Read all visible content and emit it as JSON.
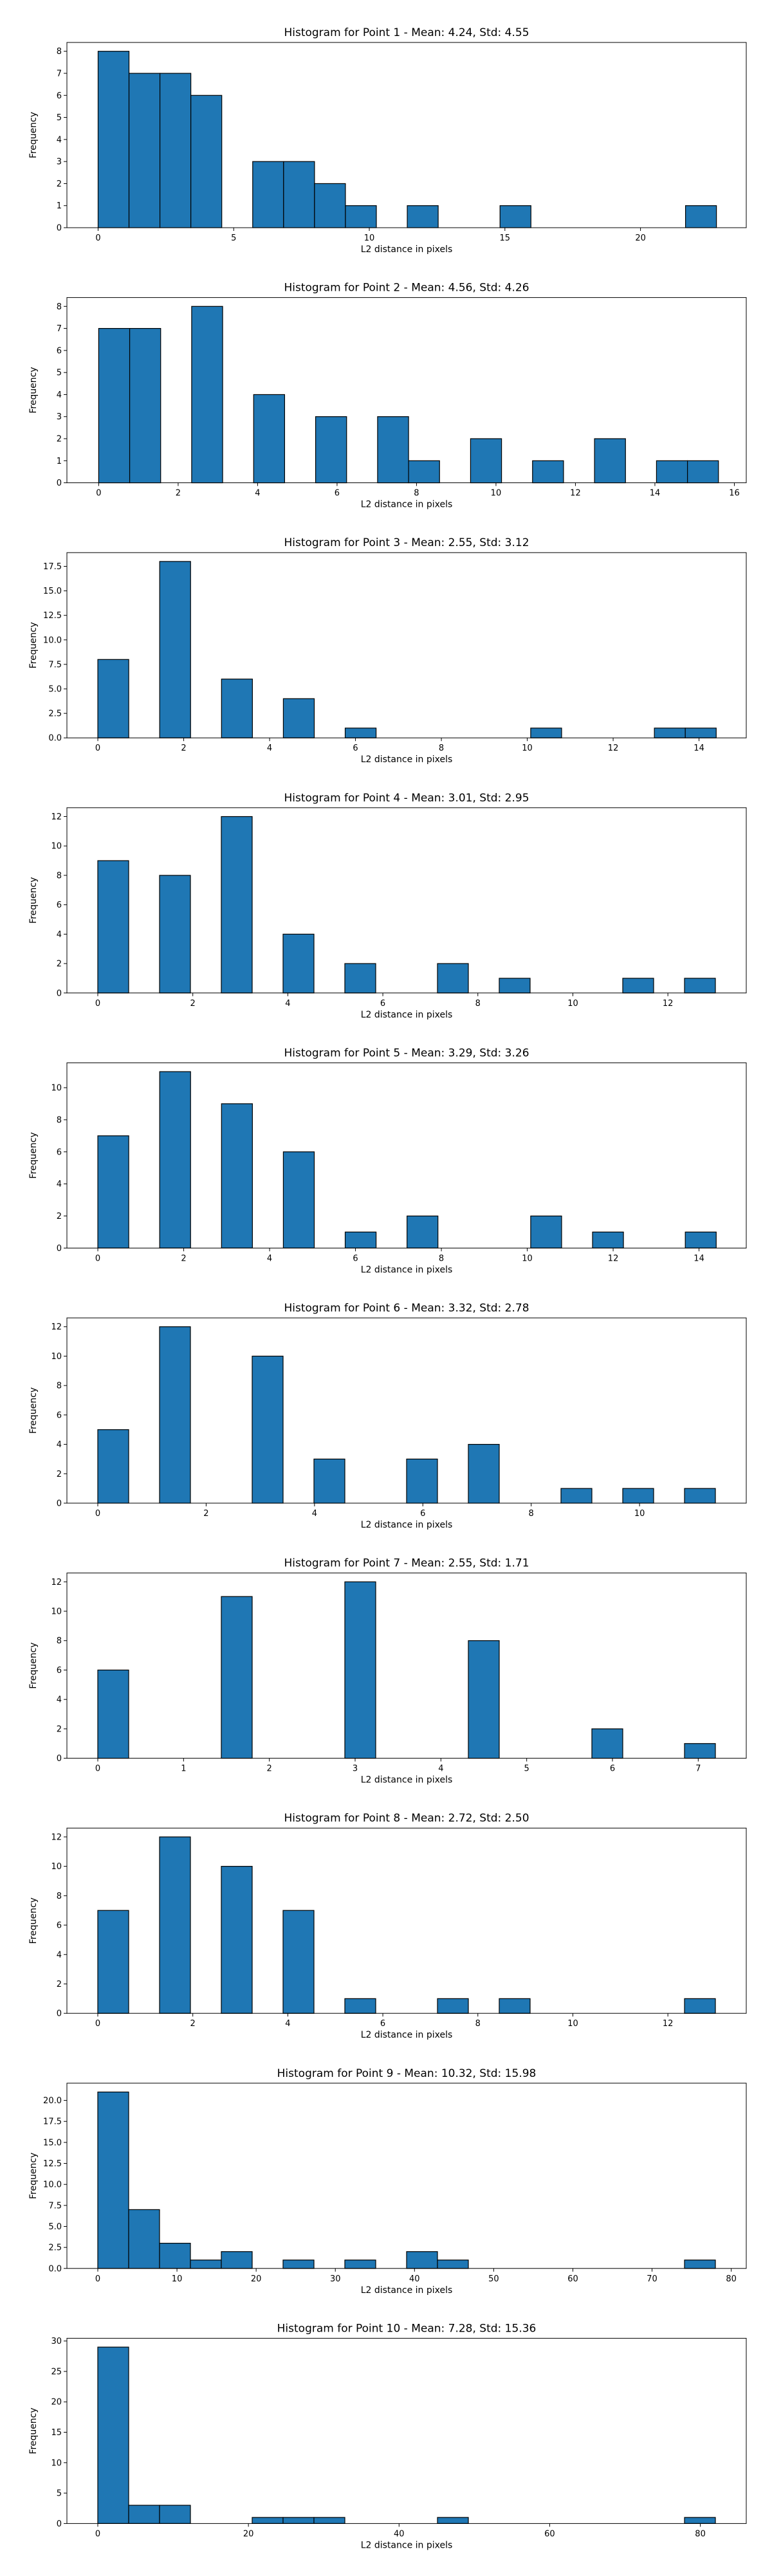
{
  "figure": {
    "bar_color": "#1f77b4",
    "edge_color": "#000000",
    "background": "#ffffff"
  },
  "chart_data": [
    {
      "type": "bar",
      "title": "Histogram for Point 1 - Mean: 4.24, Std: 4.55",
      "xlabel": "L2 distance in pixels",
      "ylabel": "Frequency",
      "xlim": [
        -1.15,
        23.9
      ],
      "ylim": [
        0,
        8.4
      ],
      "x_ticks": [
        0,
        5,
        10,
        15,
        20
      ],
      "y_ticks": [
        0,
        1,
        2,
        3,
        4,
        5,
        6,
        7,
        8
      ],
      "bin_edges": [
        0,
        1.14,
        2.28,
        3.42,
        4.56,
        5.7,
        6.84,
        7.98,
        9.12,
        10.26,
        11.4,
        12.54,
        13.68,
        14.82,
        15.96,
        17.1,
        18.24,
        19.38,
        20.52,
        21.66,
        22.8
      ],
      "values": [
        8,
        7,
        7,
        6,
        0,
        3,
        3,
        2,
        1,
        0,
        1,
        0,
        0,
        1,
        0,
        0,
        0,
        0,
        0,
        1
      ]
    },
    {
      "type": "bar",
      "title": "Histogram for Point 2 - Mean: 4.56, Std: 4.26",
      "xlabel": "L2 distance in pixels",
      "ylabel": "Frequency",
      "xlim": [
        -0.8,
        16.3
      ],
      "ylim": [
        0,
        8.4
      ],
      "x_ticks": [
        0,
        2,
        4,
        6,
        8,
        10,
        12,
        14,
        16
      ],
      "y_ticks": [
        0,
        1,
        2,
        3,
        4,
        5,
        6,
        7,
        8
      ],
      "bin_edges": [
        0,
        0.78,
        1.56,
        2.34,
        3.12,
        3.9,
        4.68,
        5.46,
        6.24,
        7.02,
        7.8,
        8.58,
        9.36,
        10.14,
        10.92,
        11.7,
        12.48,
        13.26,
        14.04,
        14.82,
        15.6
      ],
      "values": [
        7,
        7,
        0,
        8,
        0,
        4,
        0,
        3,
        0,
        3,
        1,
        0,
        2,
        0,
        1,
        0,
        2,
        0,
        1,
        1
      ]
    },
    {
      "type": "bar",
      "title": "Histogram for Point 3 - Mean: 2.55, Std: 3.12",
      "xlabel": "L2 distance in pixels",
      "ylabel": "Frequency",
      "xlim": [
        -0.72,
        15.1
      ],
      "ylim": [
        0,
        18.9
      ],
      "x_ticks": [
        0,
        2,
        4,
        6,
        8,
        10,
        12,
        14
      ],
      "y_ticks": [
        0,
        2.5,
        5,
        7.5,
        10,
        12.5,
        15,
        17.5
      ],
      "y_tick_labels": [
        "0.0",
        "2.5",
        "5.0",
        "7.5",
        "10.0",
        "12.5",
        "15.0",
        "17.5"
      ],
      "bin_edges": [
        0,
        0.72,
        1.44,
        2.16,
        2.88,
        3.6,
        4.32,
        5.04,
        5.76,
        6.48,
        7.2,
        7.92,
        8.64,
        9.36,
        10.08,
        10.8,
        11.52,
        12.24,
        12.96,
        13.68,
        14.4
      ],
      "values": [
        8,
        0,
        18,
        0,
        6,
        0,
        4,
        0,
        1,
        0,
        0,
        0,
        0,
        0,
        1,
        0,
        0,
        0,
        1,
        1
      ]
    },
    {
      "type": "bar",
      "title": "Histogram for Point 4 - Mean: 3.01, Std: 2.95",
      "xlabel": "L2 distance in pixels",
      "ylabel": "Frequency",
      "xlim": [
        -0.65,
        13.65
      ],
      "ylim": [
        0,
        12.6
      ],
      "x_ticks": [
        0,
        2,
        4,
        6,
        8,
        10,
        12
      ],
      "y_ticks": [
        0,
        2,
        4,
        6,
        8,
        10,
        12
      ],
      "bin_edges": [
        0,
        0.65,
        1.3,
        1.95,
        2.6,
        3.25,
        3.9,
        4.55,
        5.2,
        5.85,
        6.5,
        7.15,
        7.8,
        8.45,
        9.1,
        9.75,
        10.4,
        11.05,
        11.7,
        12.35,
        13.0
      ],
      "values": [
        9,
        0,
        8,
        0,
        12,
        0,
        4,
        0,
        2,
        0,
        0,
        2,
        0,
        1,
        0,
        0,
        0,
        1,
        0,
        1
      ]
    },
    {
      "type": "bar",
      "title": "Histogram for Point 5 - Mean: 3.29, Std: 3.26",
      "xlabel": "L2 distance in pixels",
      "ylabel": "Frequency",
      "xlim": [
        -0.72,
        15.1
      ],
      "ylim": [
        0,
        11.55
      ],
      "x_ticks": [
        0,
        2,
        4,
        6,
        8,
        10,
        12,
        14
      ],
      "y_ticks": [
        0,
        2,
        4,
        6,
        8,
        10
      ],
      "bin_edges": [
        0,
        0.72,
        1.44,
        2.16,
        2.88,
        3.6,
        4.32,
        5.04,
        5.76,
        6.48,
        7.2,
        7.92,
        8.64,
        9.36,
        10.08,
        10.8,
        11.52,
        12.24,
        12.96,
        13.68,
        14.4
      ],
      "values": [
        7,
        0,
        11,
        0,
        9,
        0,
        6,
        0,
        1,
        0,
        2,
        0,
        0,
        0,
        2,
        0,
        1,
        0,
        0,
        1
      ]
    },
    {
      "type": "bar",
      "title": "Histogram for Point 6 - Mean: 3.32, Std: 2.78",
      "xlabel": "L2 distance in pixels",
      "ylabel": "Frequency",
      "xlim": [
        -0.57,
        11.97
      ],
      "ylim": [
        0,
        12.6
      ],
      "x_ticks": [
        0,
        2,
        4,
        6,
        8,
        10
      ],
      "y_ticks": [
        0,
        2,
        4,
        6,
        8,
        10,
        12
      ],
      "bin_edges": [
        0,
        0.57,
        1.14,
        1.71,
        2.28,
        2.85,
        3.42,
        3.99,
        4.56,
        5.13,
        5.7,
        6.27,
        6.84,
        7.41,
        7.98,
        8.55,
        9.12,
        9.69,
        10.26,
        10.83,
        11.4
      ],
      "values": [
        5,
        0,
        12,
        0,
        0,
        10,
        0,
        3,
        0,
        0,
        3,
        0,
        4,
        0,
        0,
        1,
        0,
        1,
        0,
        1
      ]
    },
    {
      "type": "bar",
      "title": "Histogram for Point 7 - Mean: 2.55, Std: 1.71",
      "xlabel": "L2 distance in pixels",
      "ylabel": "Frequency",
      "xlim": [
        -0.36,
        7.56
      ],
      "ylim": [
        0,
        12.6
      ],
      "x_ticks": [
        0,
        1,
        2,
        3,
        4,
        5,
        6,
        7
      ],
      "y_ticks": [
        0,
        2,
        4,
        6,
        8,
        10,
        12
      ],
      "bin_edges": [
        0,
        0.36,
        0.72,
        1.08,
        1.44,
        1.8,
        2.16,
        2.52,
        2.88,
        3.24,
        3.6,
        3.96,
        4.32,
        4.68,
        5.04,
        5.4,
        5.76,
        6.12,
        6.48,
        6.84,
        7.2
      ],
      "values": [
        6,
        0,
        0,
        0,
        11,
        0,
        0,
        0,
        12,
        0,
        0,
        0,
        8,
        0,
        0,
        0,
        2,
        0,
        0,
        1
      ]
    },
    {
      "type": "bar",
      "title": "Histogram for Point 8 - Mean: 2.72, Std: 2.50",
      "xlabel": "L2 distance in pixels",
      "ylabel": "Frequency",
      "xlim": [
        -0.65,
        13.65
      ],
      "ylim": [
        0,
        12.6
      ],
      "x_ticks": [
        0,
        2,
        4,
        6,
        8,
        10,
        12
      ],
      "y_ticks": [
        0,
        2,
        4,
        6,
        8,
        10,
        12
      ],
      "bin_edges": [
        0,
        0.65,
        1.3,
        1.95,
        2.6,
        3.25,
        3.9,
        4.55,
        5.2,
        5.85,
        6.5,
        7.15,
        7.8,
        8.45,
        9.1,
        9.75,
        10.4,
        11.05,
        11.7,
        12.35,
        13.0
      ],
      "values": [
        7,
        0,
        12,
        0,
        10,
        0,
        7,
        0,
        1,
        0,
        0,
        1,
        0,
        1,
        0,
        0,
        0,
        0,
        0,
        1
      ]
    },
    {
      "type": "bar",
      "title": "Histogram for Point 9 - Mean: 10.32, Std: 15.98",
      "xlabel": "L2 distance in pixels",
      "ylabel": "Frequency",
      "xlim": [
        -3.9,
        81.9
      ],
      "ylim": [
        0,
        22.05
      ],
      "x_ticks": [
        0,
        10,
        20,
        30,
        40,
        50,
        60,
        70,
        80
      ],
      "y_ticks": [
        0,
        2.5,
        5,
        7.5,
        10,
        12.5,
        15,
        17.5,
        20
      ],
      "y_tick_labels": [
        "0.0",
        "2.5",
        "5.0",
        "7.5",
        "10.0",
        "12.5",
        "15.0",
        "17.5",
        "20.0"
      ],
      "bin_edges": [
        0,
        3.9,
        7.8,
        11.7,
        15.6,
        19.5,
        23.4,
        27.3,
        31.2,
        35.1,
        39.0,
        42.9,
        46.8,
        50.7,
        54.6,
        58.5,
        62.4,
        66.3,
        70.2,
        74.1,
        78.0
      ],
      "values": [
        21,
        7,
        3,
        1,
        2,
        0,
        1,
        0,
        1,
        0,
        2,
        1,
        0,
        0,
        0,
        0,
        0,
        0,
        0,
        1
      ]
    },
    {
      "type": "bar",
      "title": "Histogram for Point 10 - Mean: 7.28, Std: 15.36",
      "xlabel": "L2 distance in pixels",
      "ylabel": "Frequency",
      "xlim": [
        -4.1,
        86.1
      ],
      "ylim": [
        0,
        30.45
      ],
      "x_ticks": [
        0,
        20,
        40,
        60,
        80
      ],
      "y_ticks": [
        0,
        5,
        10,
        15,
        20,
        25,
        30
      ],
      "bin_edges": [
        0,
        4.1,
        8.2,
        12.3,
        16.4,
        20.5,
        24.6,
        28.7,
        32.8,
        36.9,
        41.0,
        45.1,
        49.2,
        53.3,
        57.4,
        61.5,
        65.6,
        69.7,
        73.8,
        77.9,
        82.0
      ],
      "values": [
        29,
        3,
        3,
        0,
        0,
        1,
        1,
        1,
        0,
        0,
        0,
        1,
        0,
        0,
        0,
        0,
        0,
        0,
        0,
        1
      ]
    }
  ]
}
